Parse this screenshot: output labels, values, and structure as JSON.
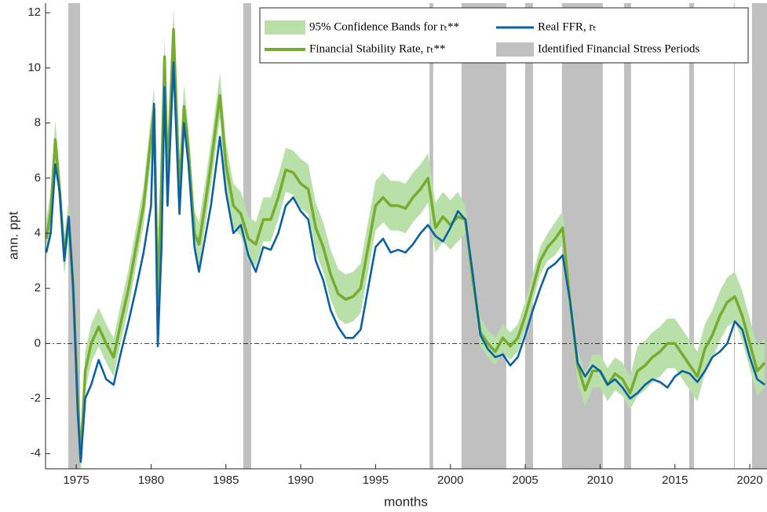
{
  "chart_data": {
    "type": "line",
    "xlabel": "months",
    "ylabel": "ann. ppt",
    "xlim": [
      1972.95,
      2021.15
    ],
    "ylim": [
      -4.55,
      12.35
    ],
    "xticks": [
      1975,
      1980,
      1985,
      1990,
      1995,
      2000,
      2005,
      2010,
      2015,
      2020
    ],
    "yticks": [
      -4,
      -2,
      0,
      2,
      4,
      6,
      8,
      10,
      12
    ],
    "zero_line": true,
    "legend": "upper right",
    "x": [
      1973.0,
      1973.3,
      1973.6,
      1973.9,
      1974.2,
      1974.5,
      1974.8,
      1975.1,
      1975.3,
      1975.6,
      1976.0,
      1976.5,
      1977.0,
      1977.5,
      1978.0,
      1978.5,
      1979.0,
      1979.5,
      1980.0,
      1980.2,
      1980.45,
      1980.7,
      1980.9,
      1981.1,
      1981.5,
      1981.9,
      1982.2,
      1982.5,
      1982.9,
      1983.2,
      1983.6,
      1984.0,
      1984.6,
      1985.0,
      1985.5,
      1986.0,
      1986.5,
      1987.0,
      1987.5,
      1988.0,
      1988.5,
      1989.0,
      1989.5,
      1990.0,
      1990.5,
      1991.0,
      1991.5,
      1992.0,
      1992.5,
      1993.0,
      1993.5,
      1994.0,
      1994.5,
      1995.0,
      1995.5,
      1996.0,
      1996.5,
      1997.0,
      1997.5,
      1998.0,
      1998.5,
      1999.0,
      1999.5,
      2000.0,
      2000.5,
      2001.0,
      2001.5,
      2002.0,
      2002.5,
      2003.0,
      2003.5,
      2004.0,
      2004.5,
      2005.0,
      2005.5,
      2006.0,
      2006.5,
      2007.0,
      2007.5,
      2008.0,
      2008.5,
      2009.0,
      2009.5,
      2010.0,
      2010.5,
      2011.0,
      2011.5,
      2012.0,
      2012.5,
      2013.0,
      2013.5,
      2014.0,
      2014.5,
      2015.0,
      2015.5,
      2016.0,
      2016.5,
      2017.0,
      2017.5,
      2018.0,
      2018.5,
      2019.0,
      2019.5,
      2020.0,
      2020.5,
      2021.0
    ],
    "shaded_periods": {
      "name": "Identified Financial Stress Periods",
      "color": "#c0c0c0",
      "ranges": [
        [
          1974.47,
          1975.26
        ],
        [
          1986.16,
          1986.69
        ],
        [
          1998.6,
          1998.85
        ],
        [
          2000.74,
          2003.73
        ],
        [
          2004.99,
          2005.52
        ],
        [
          2007.45,
          2010.18
        ],
        [
          2011.6,
          2012.07
        ],
        [
          2015.95,
          2016.27
        ],
        [
          2018.94,
          2019.0
        ],
        [
          2020.15,
          2021.15
        ]
      ]
    },
    "band": {
      "name": "95% Confidence Bands for rₜ**",
      "color": "#b8e0a8",
      "upper": [
        4.5,
        5.5,
        8.1,
        6.2,
        3.9,
        5.2,
        2.7,
        -1.3,
        -3.5,
        -0.3,
        0.7,
        1.3,
        0.7,
        0.2,
        1.5,
        2.7,
        4.2,
        5.7,
        8.3,
        9.3,
        2.3,
        6.8,
        11.2,
        6.8,
        12.2,
        6.3,
        9.4,
        7.8,
        4.8,
        4.4,
        5.8,
        7.3,
        9.8,
        7.3,
        5.8,
        5.5,
        4.6,
        4.4,
        5.3,
        5.3,
        6.1,
        7.1,
        7.0,
        6.7,
        6.5,
        5.1,
        4.4,
        3.4,
        2.7,
        2.5,
        2.6,
        2.9,
        4.4,
        5.9,
        6.2,
        5.9,
        5.9,
        5.8,
        6.2,
        6.5,
        6.9,
        5.1,
        5.5,
        5.2,
        5.5,
        5.0,
        2.8,
        0.9,
        0.5,
        0.2,
        0.7,
        0.4,
        0.7,
        1.5,
        2.5,
        3.5,
        4.0,
        4.4,
        4.8,
        2.1,
        -0.2,
        -1.1,
        -0.4,
        -0.4,
        -0.9,
        -0.5,
        -0.7,
        -1.2,
        -0.1,
        0.1,
        0.4,
        0.6,
        0.9,
        0.9,
        0.5,
        0.1,
        -0.3,
        0.7,
        1.2,
        1.9,
        2.4,
        2.6,
        1.9,
        0.9,
        -0.1,
        0.2
      ],
      "lower": [
        3.1,
        4.1,
        6.7,
        4.8,
        2.5,
        3.8,
        1.3,
        -2.7,
        -4.9,
        -1.7,
        -0.7,
        -0.1,
        -0.7,
        -1.2,
        0.1,
        1.3,
        2.8,
        4.3,
        6.7,
        7.7,
        0.7,
        5.2,
        9.6,
        5.2,
        10.6,
        4.7,
        7.8,
        6.2,
        3.2,
        2.8,
        4.2,
        5.7,
        8.2,
        5.7,
        4.2,
        3.9,
        3.0,
        2.8,
        3.7,
        3.7,
        4.5,
        5.5,
        5.4,
        4.9,
        4.7,
        3.3,
        2.6,
        1.6,
        0.9,
        0.7,
        0.8,
        1.1,
        2.6,
        4.1,
        4.4,
        4.1,
        4.1,
        4.0,
        4.4,
        4.7,
        5.1,
        3.3,
        3.7,
        3.4,
        3.7,
        4.0,
        1.8,
        -0.1,
        -0.5,
        -0.8,
        -0.3,
        -0.6,
        -0.3,
        0.5,
        1.5,
        2.5,
        3.0,
        3.2,
        3.6,
        0.9,
        -1.4,
        -2.3,
        -1.6,
        -1.6,
        -2.1,
        -1.7,
        -1.9,
        -2.4,
        -1.9,
        -1.7,
        -1.4,
        -1.2,
        -0.9,
        -0.9,
        -1.3,
        -1.7,
        -2.1,
        -1.1,
        -0.6,
        0.1,
        0.6,
        0.8,
        0.1,
        -0.9,
        -1.9,
        -1.6
      ]
    },
    "series": [
      {
        "name": "Financial Stability Rate, rₜ**",
        "color": "#77ac30",
        "values": [
          3.8,
          4.8,
          7.4,
          5.5,
          3.2,
          4.5,
          2.0,
          -2.0,
          -4.2,
          -1.0,
          0.0,
          0.6,
          0.0,
          -0.5,
          0.8,
          2.0,
          3.5,
          5.0,
          7.5,
          8.5,
          1.5,
          6.0,
          10.4,
          6.0,
          11.4,
          5.5,
          8.6,
          7.0,
          4.0,
          3.6,
          5.0,
          6.5,
          9.0,
          6.5,
          5.0,
          4.7,
          3.8,
          3.6,
          4.5,
          4.5,
          5.3,
          6.3,
          6.2,
          5.8,
          5.6,
          4.2,
          3.5,
          2.5,
          1.8,
          1.6,
          1.7,
          2.0,
          3.5,
          5.0,
          5.3,
          5.0,
          5.0,
          4.9,
          5.3,
          5.6,
          6.0,
          4.2,
          4.6,
          4.3,
          4.6,
          4.5,
          2.3,
          0.4,
          0.0,
          -0.3,
          0.2,
          -0.1,
          0.2,
          1.0,
          2.0,
          3.0,
          3.5,
          3.8,
          4.2,
          1.5,
          -0.8,
          -1.7,
          -1.0,
          -1.0,
          -1.5,
          -1.1,
          -1.3,
          -1.8,
          -1.0,
          -0.8,
          -0.5,
          -0.3,
          0.0,
          0.0,
          -0.4,
          -0.8,
          -1.2,
          -0.2,
          0.3,
          1.0,
          1.5,
          1.7,
          1.0,
          0.0,
          -1.0,
          -0.7
        ]
      },
      {
        "name": "Real FFR, rₜ",
        "color": "#0b61a4",
        "values": [
          3.3,
          4.0,
          6.5,
          5.5,
          3.0,
          4.6,
          2.0,
          -2.5,
          -4.3,
          -2.0,
          -1.5,
          -0.6,
          -1.3,
          -1.5,
          -0.3,
          0.8,
          2.0,
          3.3,
          5.0,
          8.7,
          -0.1,
          3.5,
          9.3,
          5.0,
          10.2,
          4.7,
          8.0,
          6.5,
          3.5,
          2.6,
          3.8,
          5.0,
          7.5,
          5.5,
          4.0,
          4.3,
          3.2,
          2.6,
          3.5,
          3.4,
          4.0,
          5.0,
          5.3,
          4.8,
          4.5,
          3.0,
          2.3,
          1.2,
          0.6,
          0.2,
          0.2,
          0.5,
          2.0,
          3.5,
          3.8,
          3.3,
          3.4,
          3.3,
          3.6,
          4.0,
          4.3,
          3.9,
          3.7,
          4.2,
          4.8,
          4.5,
          2.5,
          0.3,
          -0.2,
          -0.5,
          -0.4,
          -0.8,
          -0.5,
          0.3,
          1.2,
          2.0,
          2.7,
          2.9,
          3.2,
          1.5,
          -0.7,
          -1.2,
          -0.8,
          -1.0,
          -1.5,
          -1.3,
          -1.6,
          -2.0,
          -1.8,
          -1.5,
          -1.3,
          -1.4,
          -1.6,
          -1.2,
          -1.0,
          -1.1,
          -1.4,
          -1.0,
          -0.5,
          -0.3,
          0.0,
          0.8,
          0.5,
          -0.5,
          -1.3,
          -1.5
        ]
      }
    ]
  }
}
